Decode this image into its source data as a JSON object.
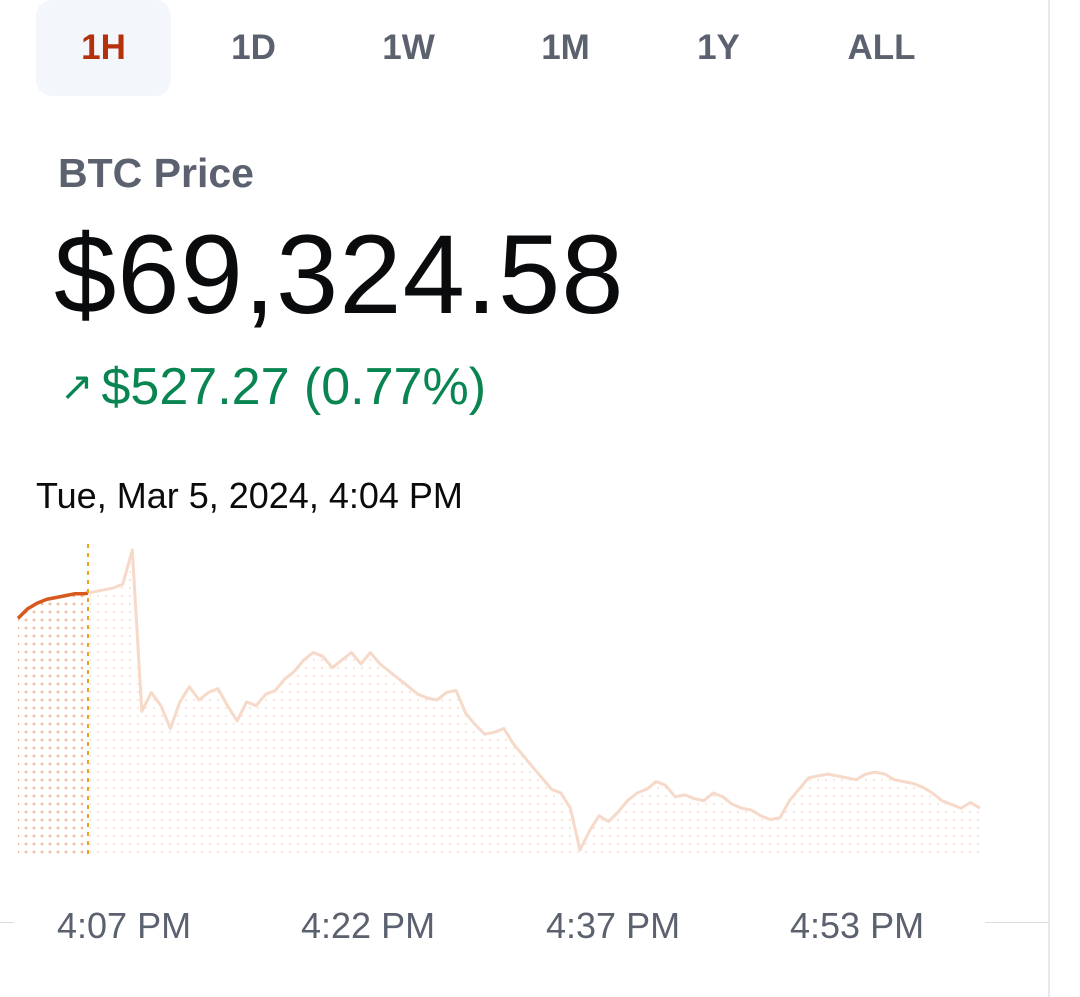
{
  "range_tabs": [
    {
      "label": "1H",
      "active": true
    },
    {
      "label": "1D",
      "active": false
    },
    {
      "label": "1W",
      "active": false
    },
    {
      "label": "1M",
      "active": false
    },
    {
      "label": "1Y",
      "active": false
    },
    {
      "label": "ALL",
      "active": false
    }
  ],
  "header": {
    "asset_label": "BTC Price",
    "price": "$69,324.58",
    "change_icon": "arrow-up-right-icon",
    "change_text": "$527.27 (0.77%)"
  },
  "hover": {
    "timestamp": "Tue, Mar 5, 2024, 4:04 PM"
  },
  "colors": {
    "accent": "#b4310c",
    "positive": "#098551",
    "line_active": "#d65a1f",
    "line_inactive": "#f6d9c9",
    "muted": "#5b616e"
  },
  "chart_data": {
    "type": "line",
    "x_tick_labels": [
      "4:07 PM",
      "4:22 PM",
      "4:37 PM",
      "4:53 PM"
    ],
    "hover_label": "Tue, Mar 5, 2024, 4:04 PM",
    "series": [
      {
        "values": [
          69150,
          69175,
          69190,
          69200,
          69205,
          69210,
          69215,
          69215,
          69220,
          69225,
          69230,
          69240,
          69330,
          68905,
          68955,
          68920,
          68860,
          68930,
          68970,
          68935,
          68955,
          68965,
          68920,
          68880,
          68930,
          68920,
          68950,
          68960,
          68990,
          69010,
          69040,
          69060,
          69050,
          69020,
          69040,
          69060,
          69030,
          69060,
          69030,
          69010,
          68990,
          68970,
          68950,
          68940,
          68935,
          68955,
          68960,
          68900,
          68870,
          68845,
          68850,
          68860,
          68820,
          68790,
          68760,
          68730,
          68700,
          68690,
          68650,
          68540,
          68590,
          68630,
          68615,
          68640,
          68670,
          68690,
          68700,
          68720,
          68710,
          68680,
          68685,
          68675,
          68670,
          68690,
          68680,
          68660,
          68650,
          68645,
          68630,
          68620,
          68625,
          68670,
          68700,
          68730,
          68735,
          68740,
          68735,
          68730,
          68725,
          68740,
          68745,
          68740,
          68725,
          68720,
          68715,
          68705,
          68690,
          68670,
          68660,
          68650,
          68665,
          68650
        ]
      }
    ],
    "grid": false,
    "legend": "none"
  }
}
